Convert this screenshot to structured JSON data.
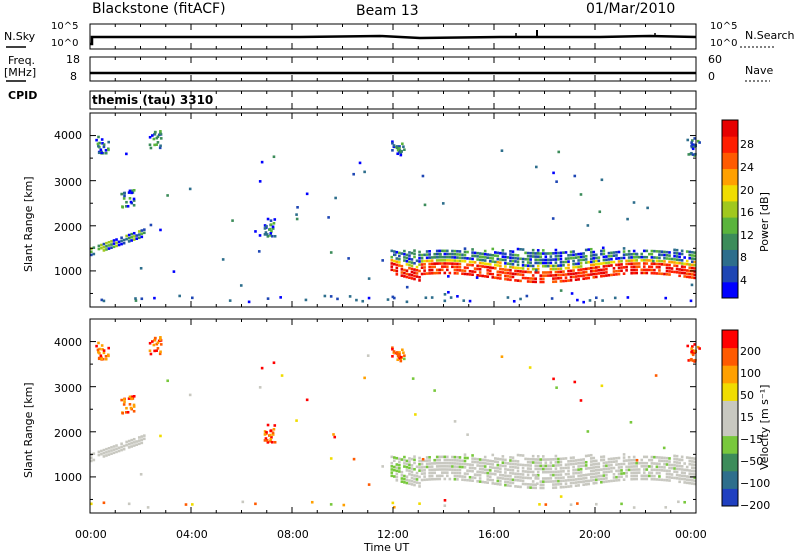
{
  "header": {
    "station": "Blackstone (fitACF)",
    "beam": "Beam 13",
    "date": "01/Mar/2010"
  },
  "top_panels": {
    "nsky_label": "N.Sky",
    "nsky_ticks": [
      "10^5",
      "10^0"
    ],
    "nsearch_label": "N.Search",
    "nsearch_ticks": [
      "10^5",
      "10^0"
    ],
    "freq_label": "Freq.",
    "freq_unit": "[MHz]",
    "freq_ticks": [
      "18",
      "8"
    ],
    "nave_label": "Nave",
    "nave_ticks": [
      "60",
      "0"
    ],
    "cpid_label": "CPID",
    "cpid_value": "themis (tau) 3310"
  },
  "chart_data": [
    {
      "type": "heatmap",
      "panel": "power",
      "ylabel": "Slant Range [km]",
      "yticks": [
        "4000",
        "3000",
        "2000",
        "1000"
      ],
      "ylim": [
        200,
        4500
      ],
      "colorbar_label": "Power [dB]",
      "colorbar_ticks": [
        "28",
        "24",
        "20",
        "16",
        "12",
        "8",
        "4"
      ],
      "colorbar_colors": [
        "#0000ff",
        "#1e46b4",
        "#2d6e8c",
        "#3c8c5a",
        "#5ab43c",
        "#a0c81e",
        "#f0dc00",
        "#ffa000",
        "#ff5a00",
        "#ff1e00",
        "#e60000"
      ]
    },
    {
      "type": "heatmap",
      "panel": "velocity",
      "ylabel": "Slant Range [km]",
      "yticks": [
        "4000",
        "3000",
        "2000",
        "1000"
      ],
      "ylim": [
        200,
        4500
      ],
      "colorbar_label": "Velocity [m s⁻¹]",
      "colorbar_ticks": [
        "200",
        "100",
        "50",
        "15",
        "−15",
        "−50",
        "−100",
        "−200"
      ],
      "colorbar_colors": [
        "#2040c0",
        "#2e6e8c",
        "#3c8c5a",
        "#78c83c",
        "#c8c8c0",
        "#c8c8c0",
        "#f0dc00",
        "#ffa000",
        "#ff5a00",
        "#ff0000"
      ],
      "xlabel": "Time UT",
      "xticks": [
        "00:00",
        "04:00",
        "08:00",
        "12:00",
        "16:00",
        "20:00",
        "00:00"
      ]
    }
  ]
}
